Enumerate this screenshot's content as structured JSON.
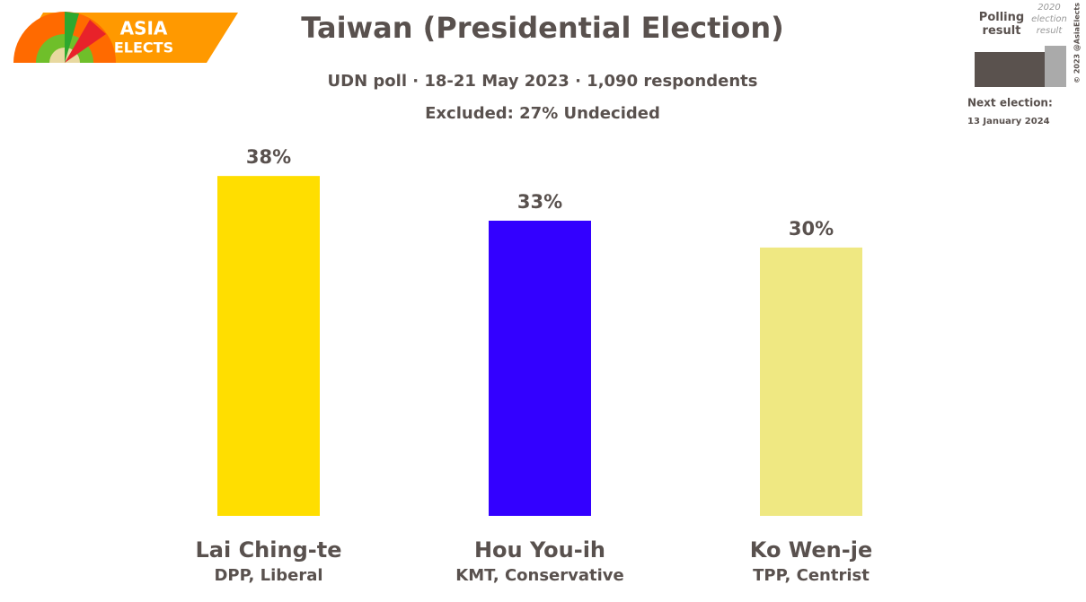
{
  "chart_data": {
    "type": "bar",
    "title": "Taiwan (Presidential Election)",
    "subtitle": "UDN poll · 18-21 May 2023 · 1,090 respondents",
    "note": "Excluded: 27% Undecided",
    "categories": [
      "Lai Ching-te",
      "Hou You-ih",
      "Ko Wen-je"
    ],
    "category_sublabels": [
      "DPP, Liberal",
      "KMT, Conservative",
      "TPP, Centrist"
    ],
    "values": [
      38,
      33,
      30
    ],
    "value_labels": [
      "38%",
      "33%",
      "30%"
    ],
    "colors": [
      "#ffde00",
      "#3300ff",
      "#efe882"
    ],
    "logo": [
      "ASIA",
      "ELECTS"
    ],
    "legend": {
      "polling": "Polling result",
      "previous": "2020 election result",
      "polling_color": "#5a524e",
      "previous_color": "#aaaaaa"
    },
    "copyright": "© 2023 @AsiaElects",
    "next_election_label": "Next election:",
    "next_election_date": "13 January 2024"
  }
}
